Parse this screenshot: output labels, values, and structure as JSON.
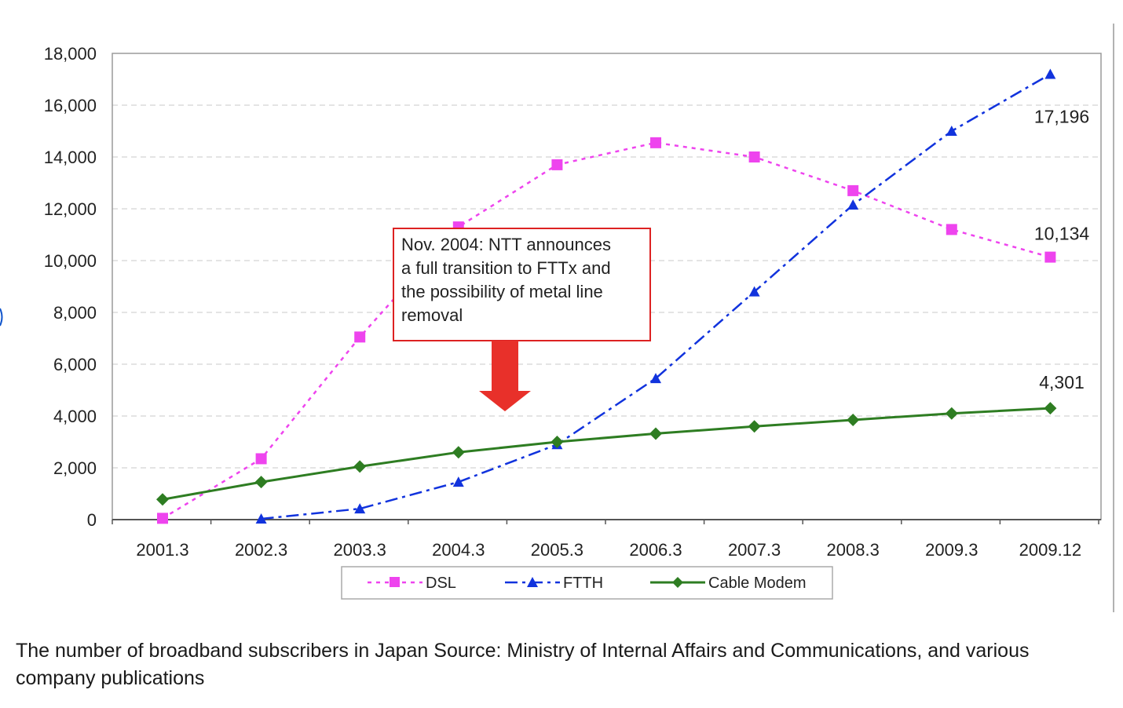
{
  "chart_data": {
    "type": "line",
    "title": "",
    "xlabel": "",
    "ylabel": "",
    "ylim": [
      0,
      18000
    ],
    "yticks": [
      0,
      2000,
      4000,
      6000,
      8000,
      10000,
      12000,
      14000,
      16000,
      18000
    ],
    "ytick_labels": [
      "0",
      "2,000",
      "4,000",
      "6,000",
      "8,000",
      "10,000",
      "12,000",
      "14,000",
      "16,000",
      "18,000"
    ],
    "categories": [
      "2001.3",
      "2002.3",
      "2003.3",
      "2004.3",
      "2005.3",
      "2006.3",
      "2007.3",
      "2008.3",
      "2009.3",
      "2009.12"
    ],
    "grid": true,
    "legend_position": "bottom",
    "series": [
      {
        "name": "DSL",
        "color": "#ee44ee",
        "marker": "square",
        "dash": "dotted",
        "values": [
          50,
          2350,
          7050,
          11300,
          13700,
          14550,
          14000,
          12700,
          11200,
          10134
        ]
      },
      {
        "name": "FTTH",
        "color": "#1133dd",
        "marker": "triangle",
        "dash": "dashdot",
        "values": [
          null,
          30,
          420,
          1450,
          2900,
          5450,
          8800,
          12150,
          15000,
          17196
        ]
      },
      {
        "name": "Cable Modem",
        "color": "#2e7d22",
        "marker": "diamond",
        "dash": "solid",
        "values": [
          780,
          1450,
          2050,
          2600,
          3000,
          3320,
          3600,
          3850,
          4100,
          4301
        ]
      }
    ],
    "end_labels": [
      "10,134",
      "17,196",
      "4,301"
    ],
    "annotation": {
      "lines": [
        "Nov. 2004: NTT announces",
        "a full transition to FTTx and",
        "the possibility of metal line",
        "removal"
      ],
      "border_color": "#dd2222",
      "arrow_color": "#e8302a"
    }
  },
  "caption": "The number of broadband subscribers in Japan Source: Ministry of Internal Affairs and Communications, and various company publications"
}
